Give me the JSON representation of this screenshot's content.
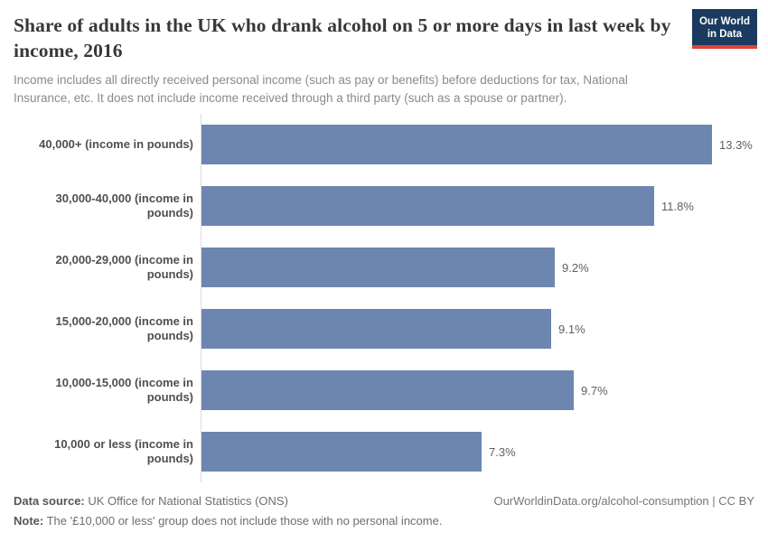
{
  "header": {
    "title": "Share of adults in the UK who drank alcohol on 5 or more days in last week by income, 2016",
    "subtitle": "Income includes all directly received personal income (such as pay or benefits) before deductions for tax, National Insurance, etc. It does not include income received through a third party (such as a spouse or partner).",
    "logo": {
      "line1": "Our World",
      "line2": "in Data"
    }
  },
  "chart_data": {
    "type": "bar",
    "orientation": "horizontal",
    "title": "Share of adults in the UK who drank alcohol on 5 or more days in last week by income, 2016",
    "year": 2016,
    "categories": [
      "40,000+ (income in pounds)",
      "30,000-40,000 (income in pounds)",
      "20,000-29,000 (income in pounds)",
      "15,000-20,000 (income in pounds)",
      "10,000-15,000 (income in pounds)",
      "10,000 or less (income in pounds)"
    ],
    "values": [
      13.3,
      11.8,
      9.2,
      9.1,
      9.7,
      7.3
    ],
    "value_labels": [
      "13.3%",
      "11.8%",
      "9.2%",
      "9.1%",
      "9.7%",
      "7.3%"
    ],
    "unit": "%",
    "xlim": [
      0,
      14.1
    ],
    "grid": false,
    "legend": "none",
    "bar_color": "#6d86b0",
    "axis_line_color": "#dcdcdc"
  },
  "footer": {
    "datasource_label": "Data source:",
    "datasource_text": " UK Office for National Statistics (ONS)",
    "note_label": "Note:",
    "note_text": " The '£10,000 or less' group does not include those with no personal income.",
    "link": "OurWorldinData.org/alcohol-consumption | CC BY"
  },
  "colors": {
    "logo_bg": "#1b3a5f",
    "logo_accent": "#e0433a",
    "title_text": "#383838",
    "subtitle_text": "#8a8a8a"
  }
}
